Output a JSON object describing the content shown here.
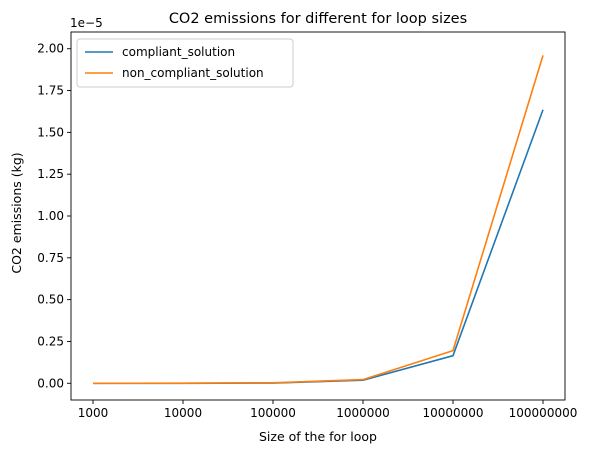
{
  "chart_data": {
    "type": "line",
    "title": "CO2 emissions for different for loop sizes",
    "xlabel": "Size of the for loop",
    "ylabel": "CO2 emissions (kg)",
    "y_offset_label": "1e−5",
    "y_scale_exponent": -5,
    "categories": [
      "1000",
      "10000",
      "100000",
      "1000000",
      "10000000",
      "100000000"
    ],
    "ylim": [
      -1e-06,
      2.1e-05
    ],
    "yticks": [
      0,
      2.5e-06,
      5e-06,
      7.5e-06,
      1e-05,
      1.25e-05,
      1.5e-05,
      1.75e-05,
      2e-05
    ],
    "ytick_labels": [
      "0.00",
      "0.25",
      "0.50",
      "0.75",
      "1.00",
      "1.25",
      "1.50",
      "1.75",
      "2.00"
    ],
    "grid": false,
    "legend_position": "top-left",
    "series": [
      {
        "name": "compliant_solution",
        "color": "#1f77b4",
        "values": [
          0.0,
          0.0,
          1.5e-08,
          1.8e-07,
          1.65e-06,
          1.635e-05
        ]
      },
      {
        "name": "non_compliant_solution",
        "color": "#ff7f0e",
        "values": [
          0.0,
          5e-09,
          3e-08,
          2.2e-07,
          1.95e-06,
          1.96e-05
        ]
      }
    ]
  }
}
